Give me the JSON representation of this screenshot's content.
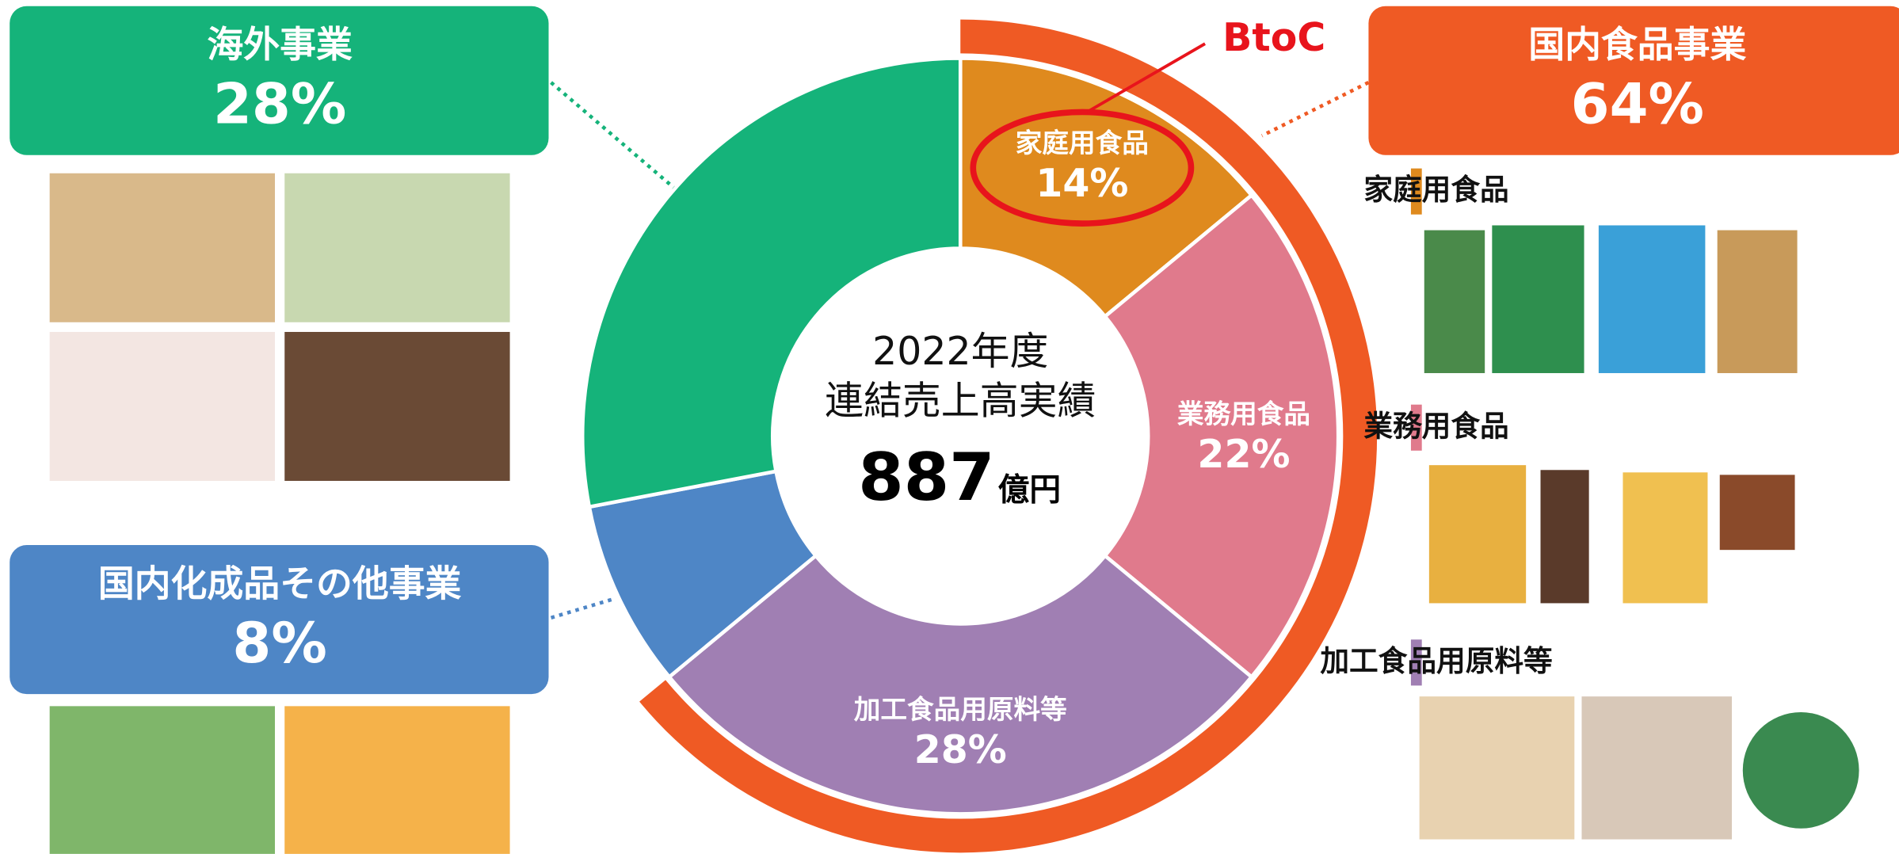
{
  "chart_data": {
    "type": "donut",
    "center_text": [
      "2022年度",
      "連結売上高実績"
    ],
    "total": 887,
    "total_unit": "億円",
    "categories": [
      "家庭用食品",
      "業務用食品",
      "加工食品用原料等",
      "国内化成品その他事業",
      "海外事業"
    ],
    "values": [
      14,
      22,
      28,
      8,
      28
    ],
    "value_labels": [
      "14%",
      "22%",
      "28%",
      "8%",
      "28%"
    ],
    "colors": [
      "#df8a1e",
      "#e07a8c",
      "#a07fb3",
      "#4e86c6",
      "#15b37a"
    ],
    "groups": [
      {
        "name": "国内食品事業",
        "value": 64,
        "value_label": "64%",
        "color": "#ef5a24"
      }
    ],
    "annotation": "BtoC"
  }
}
